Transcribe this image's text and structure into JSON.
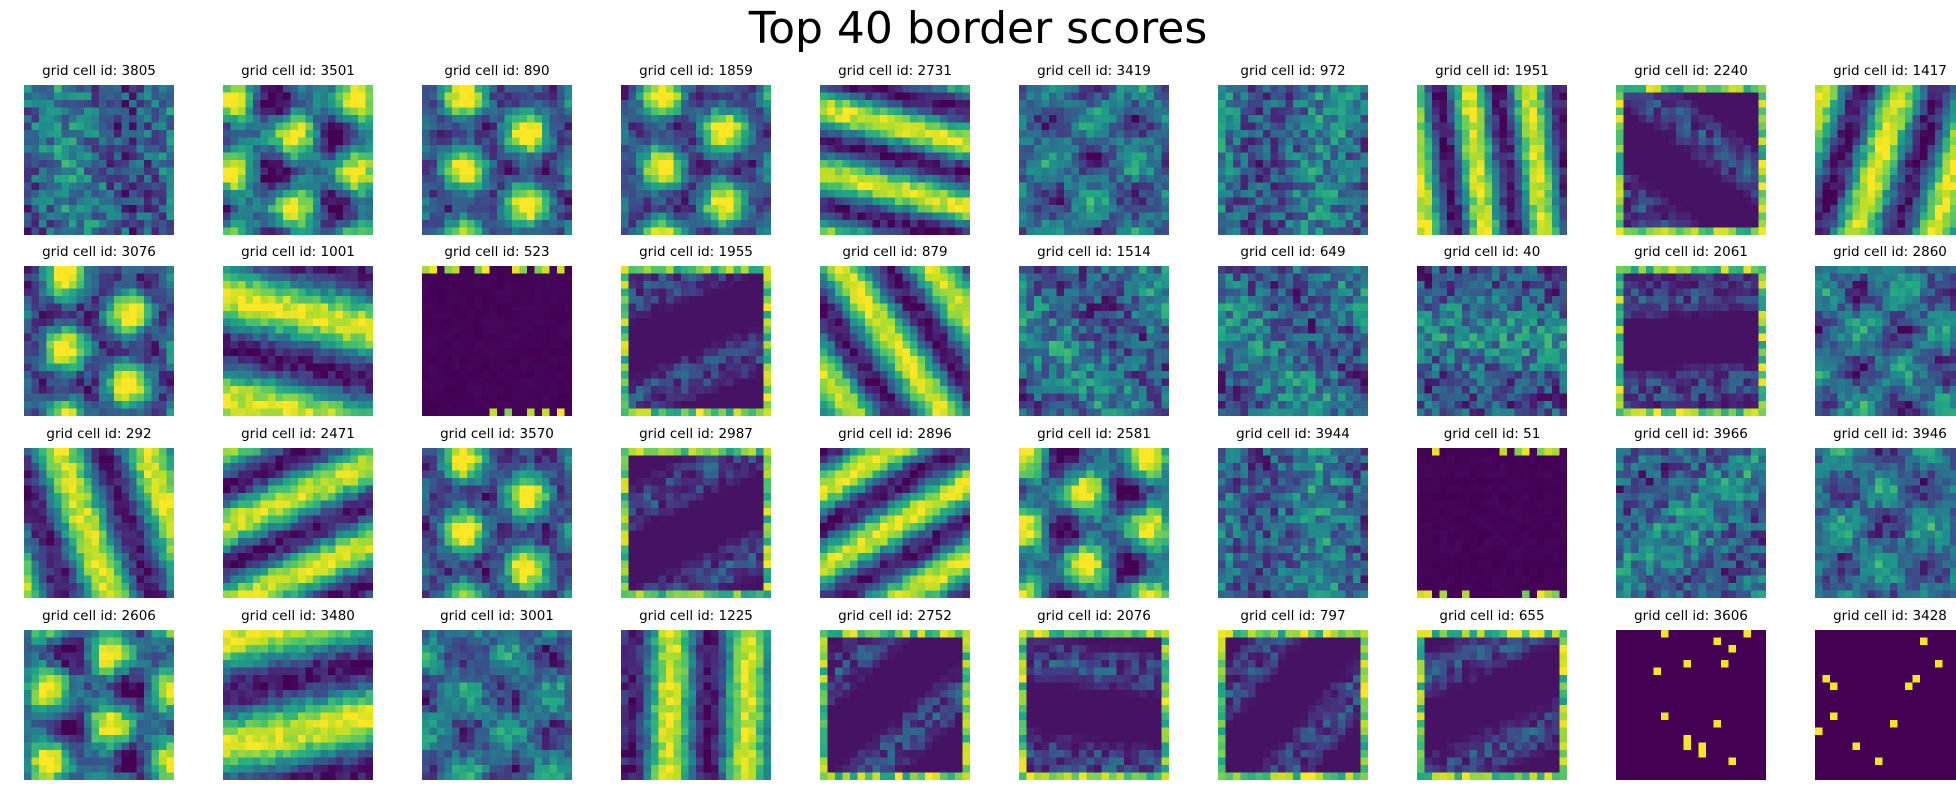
{
  "chart_data": {
    "type": "heatmap",
    "title": "Top 40 border scores",
    "layout": {
      "rows": 4,
      "cols": 10
    },
    "colormap": "viridis",
    "panel_title_prefix": "grid cell id: ",
    "panels": [
      {
        "id": 3805,
        "pattern": "noise"
      },
      {
        "id": 3501,
        "pattern": "hex"
      },
      {
        "id": 890,
        "pattern": "hex"
      },
      {
        "id": 1859,
        "pattern": "hex"
      },
      {
        "id": 2731,
        "pattern": "stripes"
      },
      {
        "id": 3419,
        "pattern": "blobs"
      },
      {
        "id": 972,
        "pattern": "noise"
      },
      {
        "id": 1951,
        "pattern": "stripes"
      },
      {
        "id": 2240,
        "pattern": "border"
      },
      {
        "id": 1417,
        "pattern": "stripes"
      },
      {
        "id": 3076,
        "pattern": "hex"
      },
      {
        "id": 1001,
        "pattern": "stripes"
      },
      {
        "id": 523,
        "pattern": "dark"
      },
      {
        "id": 1955,
        "pattern": "border"
      },
      {
        "id": 879,
        "pattern": "stripes"
      },
      {
        "id": 1514,
        "pattern": "noise"
      },
      {
        "id": 649,
        "pattern": "noise"
      },
      {
        "id": 40,
        "pattern": "noise"
      },
      {
        "id": 2061,
        "pattern": "border"
      },
      {
        "id": 2860,
        "pattern": "blobs"
      },
      {
        "id": 292,
        "pattern": "stripes"
      },
      {
        "id": 2471,
        "pattern": "stripes"
      },
      {
        "id": 3570,
        "pattern": "hex"
      },
      {
        "id": 2987,
        "pattern": "border"
      },
      {
        "id": 2896,
        "pattern": "stripes"
      },
      {
        "id": 2581,
        "pattern": "hex"
      },
      {
        "id": 3944,
        "pattern": "noise"
      },
      {
        "id": 51,
        "pattern": "dark"
      },
      {
        "id": 3966,
        "pattern": "noise"
      },
      {
        "id": 3946,
        "pattern": "blobs"
      },
      {
        "id": 2606,
        "pattern": "hex"
      },
      {
        "id": 3480,
        "pattern": "stripes"
      },
      {
        "id": 3001,
        "pattern": "blobs"
      },
      {
        "id": 1225,
        "pattern": "stripes"
      },
      {
        "id": 2752,
        "pattern": "border"
      },
      {
        "id": 2076,
        "pattern": "border"
      },
      {
        "id": 797,
        "pattern": "border"
      },
      {
        "id": 655,
        "pattern": "border"
      },
      {
        "id": 3606,
        "pattern": "sparse"
      },
      {
        "id": 3428,
        "pattern": "sparse"
      }
    ]
  }
}
